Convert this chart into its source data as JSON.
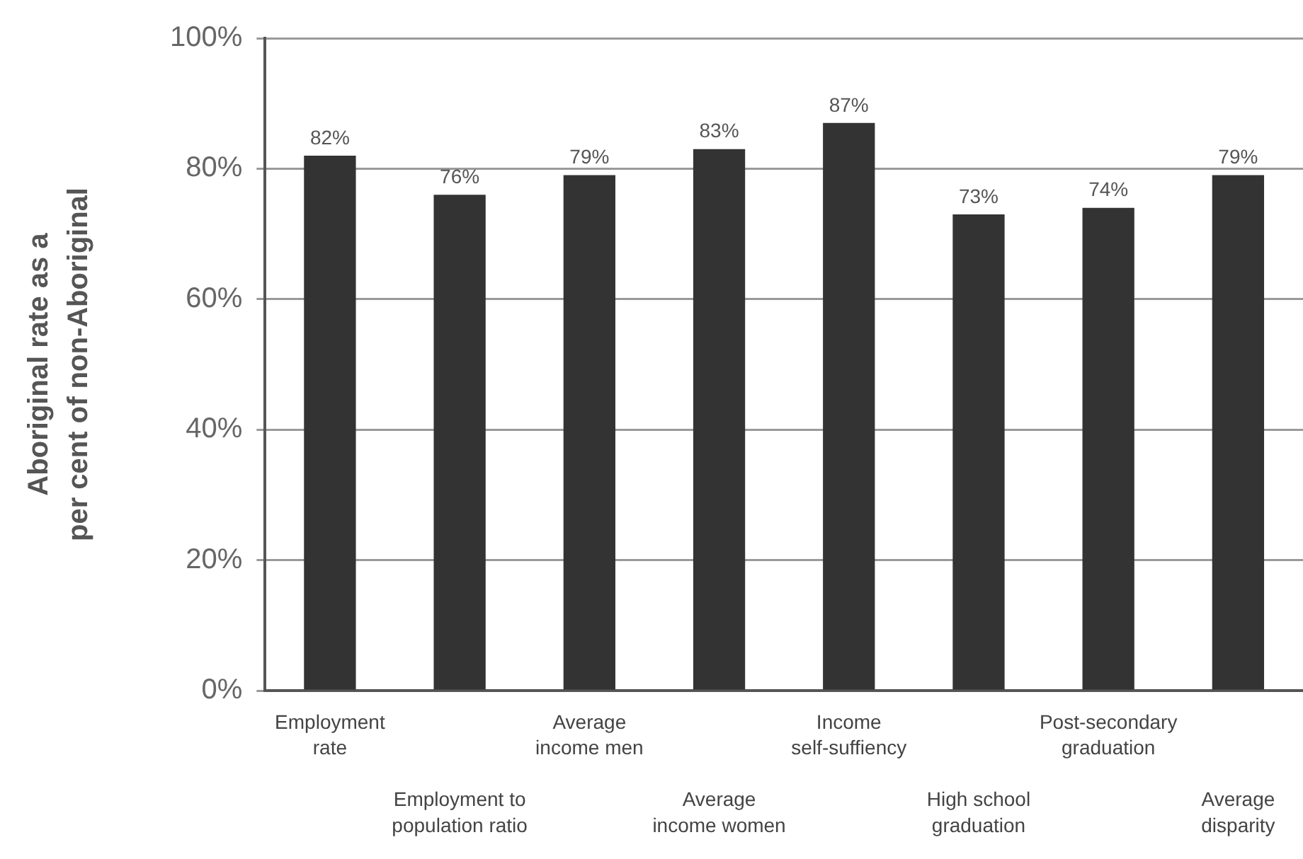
{
  "chart_data": {
    "type": "bar",
    "ylabel": "Aboriginal rate as a\nper cent of non-Aboriginal",
    "categories": [
      "Employment\nrate",
      "Employment to\npopulation ratio",
      "Average\nincome men",
      "Average\nincome women",
      "Income\nself-suffiency",
      "High school\ngraduation",
      "Post-secondary\ngraduation",
      "Average\ndisparity"
    ],
    "values": [
      82,
      76,
      79,
      83,
      87,
      73,
      74,
      79
    ],
    "color": "#333333",
    "value_labels": [
      "82%",
      "76%",
      "79%",
      "83%",
      "87%",
      "73%",
      "74%",
      "79%"
    ],
    "ylim": [
      0,
      100
    ],
    "yticks": [
      {
        "value": 0,
        "label": "0%"
      },
      {
        "value": 20,
        "label": "20%"
      },
      {
        "value": 40,
        "label": "40%"
      },
      {
        "value": 60,
        "label": "60%"
      },
      {
        "value": 80,
        "label": "80%"
      },
      {
        "value": 100,
        "label": "100%"
      }
    ],
    "grid": "y",
    "legend": false
  }
}
